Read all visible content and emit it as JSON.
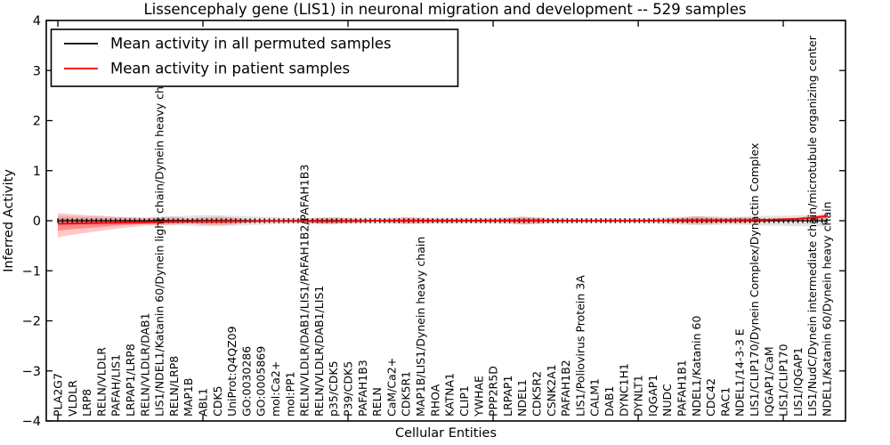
{
  "figure": {
    "title": "Lissencephaly gene (LIS1) in neuronal migration and development -- 529 samples",
    "xlabel": "Cellular Entities",
    "ylabel": "Inferred Activity"
  },
  "legend": {
    "position": "upper left",
    "entries": [
      {
        "label": "Mean activity in all permuted samples",
        "color": "#000000"
      },
      {
        "label": "Mean activity in patient samples",
        "color": "#ff0000"
      }
    ]
  },
  "colors": {
    "permuted_line": "#000000",
    "patient_line": "#ff0000",
    "permuted_band": "#999999",
    "patient_band": "#ff0000",
    "background": "#ffffff",
    "axis": "#000000"
  },
  "chart_data": {
    "type": "line",
    "title": "Lissencephaly gene (LIS1) in neuronal migration and development -- 529 samples",
    "xlabel": "Cellular Entities",
    "ylabel": "Inferred Activity",
    "ylim": [
      -4,
      4
    ],
    "yticks": [
      4,
      3,
      2,
      1,
      0,
      -1,
      -2,
      -3,
      -4
    ],
    "ytick_labels": [
      "4",
      "3",
      "2",
      "1",
      "0",
      "−1",
      "−2",
      "−3",
      "−4"
    ],
    "x_major_tick_indices": [
      0,
      10,
      20,
      30,
      40,
      50
    ],
    "grid": false,
    "legend_position": "upper left",
    "categories": [
      "PLA2G7",
      "VLDLR",
      "LRP8",
      "RELN/VLDLR",
      "PAFAH/LIS1",
      "LRPAP1/LRP8",
      "RELN/VLDLR/DAB1",
      "LIS1/NDEL1/Katanin 60/Dynein light chain/Dynein heavy chain",
      "RELN/LRP8",
      "MAP1B",
      "ABL1",
      "CDK5",
      "UniProt:Q4QZ09",
      "GO:0030286",
      "GO:0005869",
      "mol:Ca2+",
      "mol:PP1",
      "RELN/VLDLR/DAB1/LIS1/PAFAH1B2/PAFAH1B3",
      "RELN/VLDLR/DAB1/LIS1",
      "p35/CDK5",
      "P39/CDK5",
      "PAFAH1B3",
      "RELN",
      "CaM/Ca2+",
      "CDK5R1",
      "MAP1B/LIS1/Dynein heavy chain",
      "RHOA",
      "KATNA1",
      "CLIP1",
      "YWHAE",
      "PPP2R5D",
      "LRPAP1",
      "NDEL1",
      "CDK5R2",
      "CSNK2A1",
      "PAFAH1B2",
      "LIS1/Poliovirus Protein 3A",
      "CALM1",
      "DAB1",
      "DYNC1H1",
      "DYNLT1",
      "IQGAP1",
      "NUDC",
      "PAFAH1B1",
      "NDEL1/Katanin 60",
      "CDC42",
      "RAC1",
      "NDEL1/14-3-3 E",
      "LIS1/CLIP170/Dynein Complex/Dynactin Complex",
      "IQGAP1/CaM",
      "LIS1/CLIP170",
      "LIS1/IQGAP1",
      "LIS1/NudC/Dynein intermediate chain/microtubule organizing center",
      "NDEL1/Katanin 60/Dynein heavy chain"
    ],
    "series": [
      {
        "name": "Mean activity in all permuted samples",
        "color": "#000000",
        "values": [
          0,
          0,
          0,
          0,
          0,
          0,
          0,
          0,
          0,
          0,
          0,
          0,
          0,
          0,
          0,
          0,
          0,
          0,
          0,
          0,
          0,
          0,
          0,
          0,
          0,
          0,
          0,
          0,
          0,
          0,
          0,
          0,
          0,
          0,
          0,
          0,
          0,
          0,
          0,
          0,
          0,
          0,
          0,
          0,
          0,
          0,
          0,
          0,
          0,
          0,
          0,
          0,
          0,
          0
        ]
      },
      {
        "name": "Mean activity in patient samples",
        "color": "#ff0000",
        "values": [
          -0.06,
          -0.055,
          -0.05,
          -0.045,
          -0.04,
          -0.035,
          -0.03,
          -0.025,
          -0.02,
          -0.02,
          -0.015,
          -0.015,
          -0.01,
          -0.01,
          -0.005,
          -0.005,
          -0.005,
          -0.005,
          -0.01,
          -0.01,
          -0.005,
          -0.005,
          0,
          0,
          0,
          0,
          0,
          0,
          0,
          0,
          0,
          0.005,
          0.005,
          0.005,
          0,
          0,
          0,
          0,
          0,
          0,
          0,
          0,
          0.005,
          0.01,
          0.01,
          0.01,
          0.01,
          0.01,
          0.015,
          0.02,
          0.03,
          0.04,
          0.06,
          0.09
        ]
      }
    ],
    "bands": [
      {
        "name": "permuted samples range",
        "color": "#999999",
        "upper": [
          0.1,
          0.09,
          0.08,
          0.08,
          0.07,
          0.07,
          0.07,
          0.08,
          0.09,
          0.1,
          0.11,
          0.11,
          0.1,
          0.09,
          0.08,
          0.07,
          0.06,
          0.06,
          0.06,
          0.06,
          0.06,
          0.06,
          0.06,
          0.06,
          0.07,
          0.07,
          0.06,
          0.06,
          0.06,
          0.06,
          0.06,
          0.07,
          0.08,
          0.07,
          0.06,
          0.06,
          0.05,
          0.05,
          0.05,
          0.05,
          0.05,
          0.06,
          0.07,
          0.08,
          0.09,
          0.09,
          0.08,
          0.08,
          0.09,
          0.1,
          0.1,
          0.11,
          0.11,
          0.12
        ],
        "lower": [
          -0.1,
          -0.09,
          -0.08,
          -0.08,
          -0.07,
          -0.07,
          -0.07,
          -0.08,
          -0.09,
          -0.1,
          -0.11,
          -0.11,
          -0.1,
          -0.09,
          -0.08,
          -0.07,
          -0.06,
          -0.06,
          -0.06,
          -0.06,
          -0.06,
          -0.06,
          -0.06,
          -0.06,
          -0.07,
          -0.07,
          -0.06,
          -0.06,
          -0.06,
          -0.06,
          -0.06,
          -0.07,
          -0.08,
          -0.07,
          -0.06,
          -0.06,
          -0.05,
          -0.05,
          -0.05,
          -0.05,
          -0.05,
          -0.06,
          -0.07,
          -0.08,
          -0.09,
          -0.09,
          -0.08,
          -0.08,
          -0.09,
          -0.1,
          -0.1,
          -0.11,
          -0.11,
          -0.12
        ]
      },
      {
        "name": "patient samples range",
        "color": "#ff0000",
        "upper": [
          0.15,
          0.13,
          0.11,
          0.1,
          0.08,
          0.07,
          0.05,
          0.07,
          0.08,
          0.05,
          0.07,
          0.08,
          0.07,
          0.03,
          0.02,
          0.02,
          0.02,
          0.03,
          0.06,
          0.07,
          0.05,
          0.03,
          0.02,
          0.04,
          0.07,
          0.05,
          0.04,
          0.04,
          0.03,
          0.03,
          0.03,
          0.05,
          0.08,
          0.06,
          0.03,
          0.02,
          0.02,
          0.02,
          0.02,
          0.02,
          0.02,
          0.02,
          0.03,
          0.06,
          0.09,
          0.07,
          0.05,
          0.07,
          0.06,
          0.04,
          0.05,
          0.06,
          0.1,
          0.14
        ],
        "lower": [
          -0.33,
          -0.28,
          -0.24,
          -0.2,
          -0.16,
          -0.13,
          -0.1,
          -0.09,
          -0.08,
          -0.06,
          -0.08,
          -0.09,
          -0.08,
          -0.04,
          -0.03,
          -0.02,
          -0.02,
          -0.03,
          -0.07,
          -0.07,
          -0.05,
          -0.03,
          -0.02,
          -0.04,
          -0.06,
          -0.05,
          -0.04,
          -0.04,
          -0.03,
          -0.03,
          -0.03,
          -0.04,
          -0.07,
          -0.06,
          -0.03,
          -0.02,
          -0.02,
          -0.02,
          -0.02,
          -0.02,
          -0.02,
          -0.02,
          -0.03,
          -0.05,
          -0.07,
          -0.06,
          -0.04,
          -0.05,
          -0.04,
          -0.02,
          -0.01,
          0,
          0.01,
          0.02
        ]
      }
    ]
  }
}
